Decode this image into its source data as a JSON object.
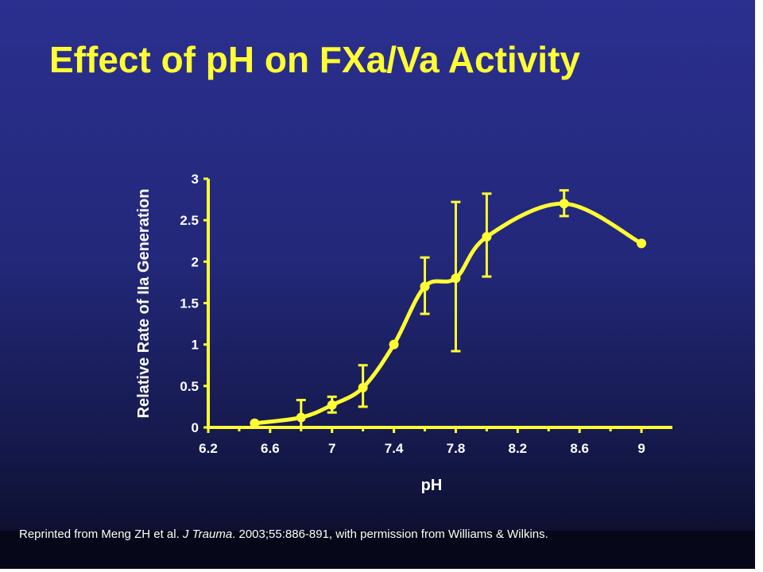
{
  "slide": {
    "title": "Effect of pH on FXa/Va Activity",
    "citation": {
      "pre": "Reprinted from Meng ZH et al. ",
      "journal": "J Trauma",
      "post": ". 2003;55:886-891, with permission from Williams & Wilkins."
    },
    "colors": {
      "background": "#23287a",
      "title": "#ffff33",
      "series": "#ffff33",
      "text": "#ffffff"
    }
  },
  "chart_data": {
    "type": "line",
    "title": "",
    "xlabel": "pH",
    "ylabel": "Relative Rate of IIa Generation",
    "xlim": [
      6.2,
      9.2
    ],
    "ylim": [
      0,
      3
    ],
    "xticks": [
      "6.2",
      "6.6",
      "7",
      "7.4",
      "7.8",
      "8.2",
      "8.6",
      "9"
    ],
    "xtick_values": [
      6.2,
      6.6,
      7.0,
      7.4,
      7.8,
      8.2,
      8.6,
      9.0
    ],
    "yticks": [
      "0",
      "0.5",
      "1",
      "1.5",
      "2",
      "2.5",
      "3"
    ],
    "ytick_values": [
      0,
      0.5,
      1,
      1.5,
      2,
      2.5,
      3
    ],
    "grid": false,
    "legend": "none",
    "series": [
      {
        "x": [
          6.5,
          6.8,
          7.0,
          7.2,
          7.4,
          7.6,
          7.8,
          8.0,
          8.5,
          9.0
        ],
        "y": [
          0.05,
          0.12,
          0.27,
          0.48,
          1.0,
          1.7,
          1.8,
          2.3,
          2.7,
          2.22
        ],
        "err_low": [
          null,
          0.0,
          0.18,
          0.25,
          null,
          1.37,
          0.92,
          1.82,
          2.55,
          null
        ],
        "err_high": [
          null,
          0.33,
          0.37,
          0.75,
          null,
          2.05,
          2.72,
          2.82,
          2.86,
          null
        ]
      }
    ]
  }
}
